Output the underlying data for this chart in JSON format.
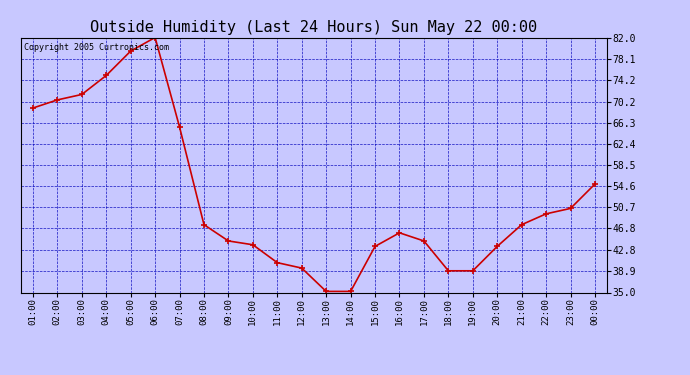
{
  "title": "Outside Humidity (Last 24 Hours) Sun May 22 00:00",
  "copyright_text": "Copyright 2005 Curtronics.com",
  "x_labels": [
    "01:00",
    "02:00",
    "03:00",
    "04:00",
    "05:00",
    "06:00",
    "07:00",
    "08:00",
    "09:00",
    "10:00",
    "11:00",
    "12:00",
    "13:00",
    "14:00",
    "15:00",
    "16:00",
    "17:00",
    "18:00",
    "19:00",
    "20:00",
    "21:00",
    "22:00",
    "23:00",
    "00:00"
  ],
  "x_values": [
    1,
    2,
    3,
    4,
    5,
    6,
    7,
    8,
    9,
    10,
    11,
    12,
    13,
    14,
    15,
    16,
    17,
    18,
    19,
    20,
    21,
    22,
    23,
    24
  ],
  "y_values": [
    69.0,
    70.5,
    71.5,
    75.0,
    79.5,
    82.0,
    65.5,
    47.5,
    44.5,
    43.8,
    40.5,
    39.5,
    35.2,
    35.2,
    43.5,
    46.0,
    44.5,
    39.0,
    39.0,
    43.5,
    47.5,
    49.5,
    50.5,
    55.0
  ],
  "line_color": "#cc0000",
  "marker_color": "#cc0000",
  "background_color": "#c8c8ff",
  "plot_bg_color": "#c8c8ff",
  "grid_color": "#0000bb",
  "title_color": "#000000",
  "title_fontsize": 11,
  "yticks": [
    35.0,
    38.9,
    42.8,
    46.8,
    50.7,
    54.6,
    58.5,
    62.4,
    66.3,
    70.2,
    74.2,
    78.1,
    82.0
  ],
  "ylim": [
    35.0,
    82.0
  ],
  "xlim": [
    0.5,
    24.5
  ],
  "figwidth": 6.9,
  "figheight": 3.75,
  "dpi": 100
}
